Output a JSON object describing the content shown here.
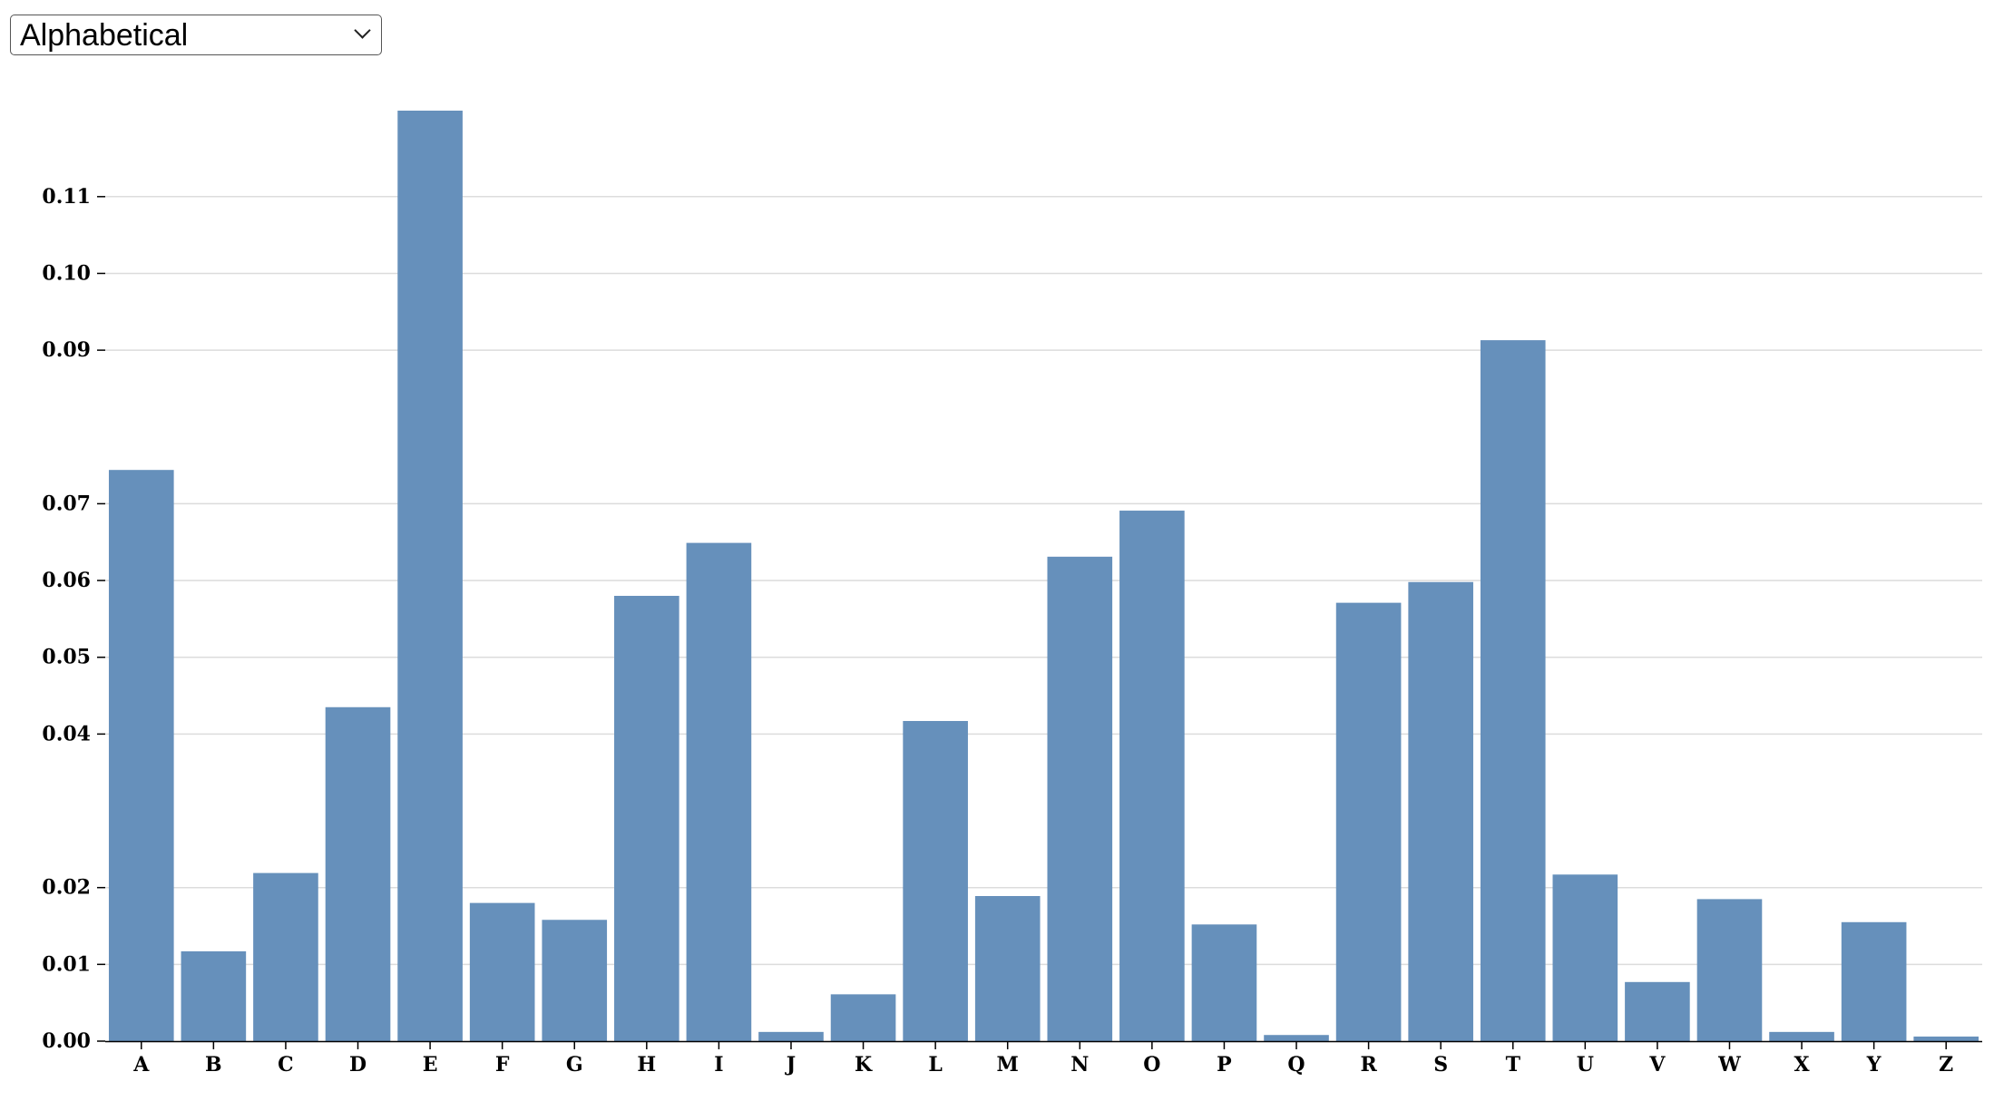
{
  "controls": {
    "sort_options": [
      "Alphabetical"
    ],
    "sort_selected": "Alphabetical"
  },
  "colors": {
    "bar": "#6690bb",
    "grid": "#dcdcdc",
    "axis": "#000000"
  },
  "chart_data": {
    "type": "bar",
    "title": "",
    "xlabel": "",
    "ylabel": "",
    "categories": [
      "A",
      "B",
      "C",
      "D",
      "E",
      "F",
      "G",
      "H",
      "I",
      "J",
      "K",
      "L",
      "M",
      "N",
      "O",
      "P",
      "Q",
      "R",
      "S",
      "T",
      "U",
      "V",
      "W",
      "X",
      "Y",
      "Z"
    ],
    "values": [
      0.0744,
      0.0117,
      0.0219,
      0.0435,
      0.1212,
      0.018,
      0.0158,
      0.058,
      0.0649,
      0.0012,
      0.0061,
      0.0417,
      0.0189,
      0.0631,
      0.0691,
      0.0152,
      0.0008,
      0.0571,
      0.0598,
      0.0913,
      0.0217,
      0.0077,
      0.0185,
      0.0012,
      0.0155,
      0.0006
    ],
    "y_tick_labels": [
      "0.00",
      "0.01",
      "0.02",
      "0.04",
      "0.05",
      "0.06",
      "0.07",
      "0.09",
      "0.10",
      "0.11"
    ],
    "grid": true
  }
}
